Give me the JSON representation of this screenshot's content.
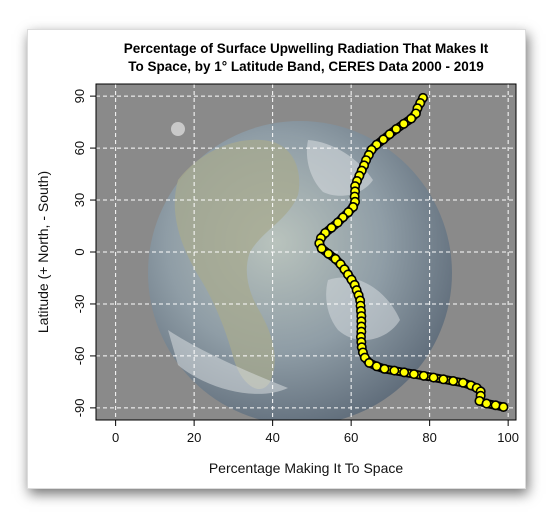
{
  "chart_data": {
    "type": "line",
    "title_lines": [
      "Percentage of Surface Upwelling Radiation That Makes It",
      "To Space, by 1° Latitude Band, CERES Data 2000 - 2019"
    ],
    "xlabel": "Percentage Making It To Space",
    "ylabel": "Latitude (+ North, - South)",
    "xlim": [
      -5,
      102
    ],
    "ylim": [
      -97,
      97
    ],
    "xticks": [
      0,
      20,
      40,
      60,
      80,
      100
    ],
    "yticks": [
      90,
      60,
      30,
      0,
      -30,
      -60,
      -90
    ],
    "grid": true,
    "colors": {
      "line": "#ffff00",
      "outline": "#000000",
      "panel": "#8a8a8a"
    },
    "series": [
      {
        "points": [
          {
            "x": 78.3,
            "y": 89
          },
          {
            "x": 77.6,
            "y": 86
          },
          {
            "x": 76.9,
            "y": 83
          },
          {
            "x": 76.5,
            "y": 80
          },
          {
            "x": 75.3,
            "y": 77
          },
          {
            "x": 73.4,
            "y": 74
          },
          {
            "x": 71.5,
            "y": 71
          },
          {
            "x": 69.8,
            "y": 68
          },
          {
            "x": 68.2,
            "y": 65
          },
          {
            "x": 66.5,
            "y": 62
          },
          {
            "x": 65.2,
            "y": 59
          },
          {
            "x": 64.5,
            "y": 56
          },
          {
            "x": 63.8,
            "y": 53
          },
          {
            "x": 63.3,
            "y": 50
          },
          {
            "x": 62.7,
            "y": 47
          },
          {
            "x": 62.1,
            "y": 44
          },
          {
            "x": 61.5,
            "y": 41
          },
          {
            "x": 61.0,
            "y": 38
          },
          {
            "x": 61.0,
            "y": 35
          },
          {
            "x": 60.9,
            "y": 32
          },
          {
            "x": 61.0,
            "y": 29
          },
          {
            "x": 60.5,
            "y": 26
          },
          {
            "x": 59.3,
            "y": 23
          },
          {
            "x": 57.9,
            "y": 20
          },
          {
            "x": 56.6,
            "y": 17
          },
          {
            "x": 55.0,
            "y": 14
          },
          {
            "x": 53.4,
            "y": 11
          },
          {
            "x": 52.3,
            "y": 8
          },
          {
            "x": 51.9,
            "y": 5
          },
          {
            "x": 52.5,
            "y": 2
          },
          {
            "x": 54.2,
            "y": -1
          },
          {
            "x": 56.0,
            "y": -4
          },
          {
            "x": 57.3,
            "y": -7
          },
          {
            "x": 58.3,
            "y": -10
          },
          {
            "x": 59.2,
            "y": -13
          },
          {
            "x": 60.1,
            "y": -16
          },
          {
            "x": 60.9,
            "y": -19
          },
          {
            "x": 61.4,
            "y": -22
          },
          {
            "x": 61.9,
            "y": -25
          },
          {
            "x": 62.3,
            "y": -28
          },
          {
            "x": 62.4,
            "y": -31
          },
          {
            "x": 62.5,
            "y": -34
          },
          {
            "x": 62.6,
            "y": -37
          },
          {
            "x": 62.6,
            "y": -40
          },
          {
            "x": 62.6,
            "y": -43
          },
          {
            "x": 62.6,
            "y": -46
          },
          {
            "x": 62.5,
            "y": -49
          },
          {
            "x": 62.6,
            "y": -52
          },
          {
            "x": 62.7,
            "y": -55
          },
          {
            "x": 63.0,
            "y": -58
          },
          {
            "x": 63.5,
            "y": -61
          },
          {
            "x": 64.6,
            "y": -64
          },
          {
            "x": 66.5,
            "y": -66
          },
          {
            "x": 68.5,
            "y": -67.5
          },
          {
            "x": 71.0,
            "y": -68.5
          },
          {
            "x": 73.5,
            "y": -69.5
          },
          {
            "x": 76.0,
            "y": -70.5
          },
          {
            "x": 78.5,
            "y": -71.5
          },
          {
            "x": 81.0,
            "y": -72.5
          },
          {
            "x": 83.5,
            "y": -73.5
          },
          {
            "x": 86.0,
            "y": -74.5
          },
          {
            "x": 88.5,
            "y": -75.5
          },
          {
            "x": 90.5,
            "y": -77
          },
          {
            "x": 92.0,
            "y": -78.5
          },
          {
            "x": 93.0,
            "y": -80.5
          },
          {
            "x": 93.0,
            "y": -83
          },
          {
            "x": 92.7,
            "y": -86
          },
          {
            "x": 94.5,
            "y": -87.5
          },
          {
            "x": 96.8,
            "y": -88.5
          },
          {
            "x": 98.8,
            "y": -89.5
          }
        ]
      }
    ]
  }
}
